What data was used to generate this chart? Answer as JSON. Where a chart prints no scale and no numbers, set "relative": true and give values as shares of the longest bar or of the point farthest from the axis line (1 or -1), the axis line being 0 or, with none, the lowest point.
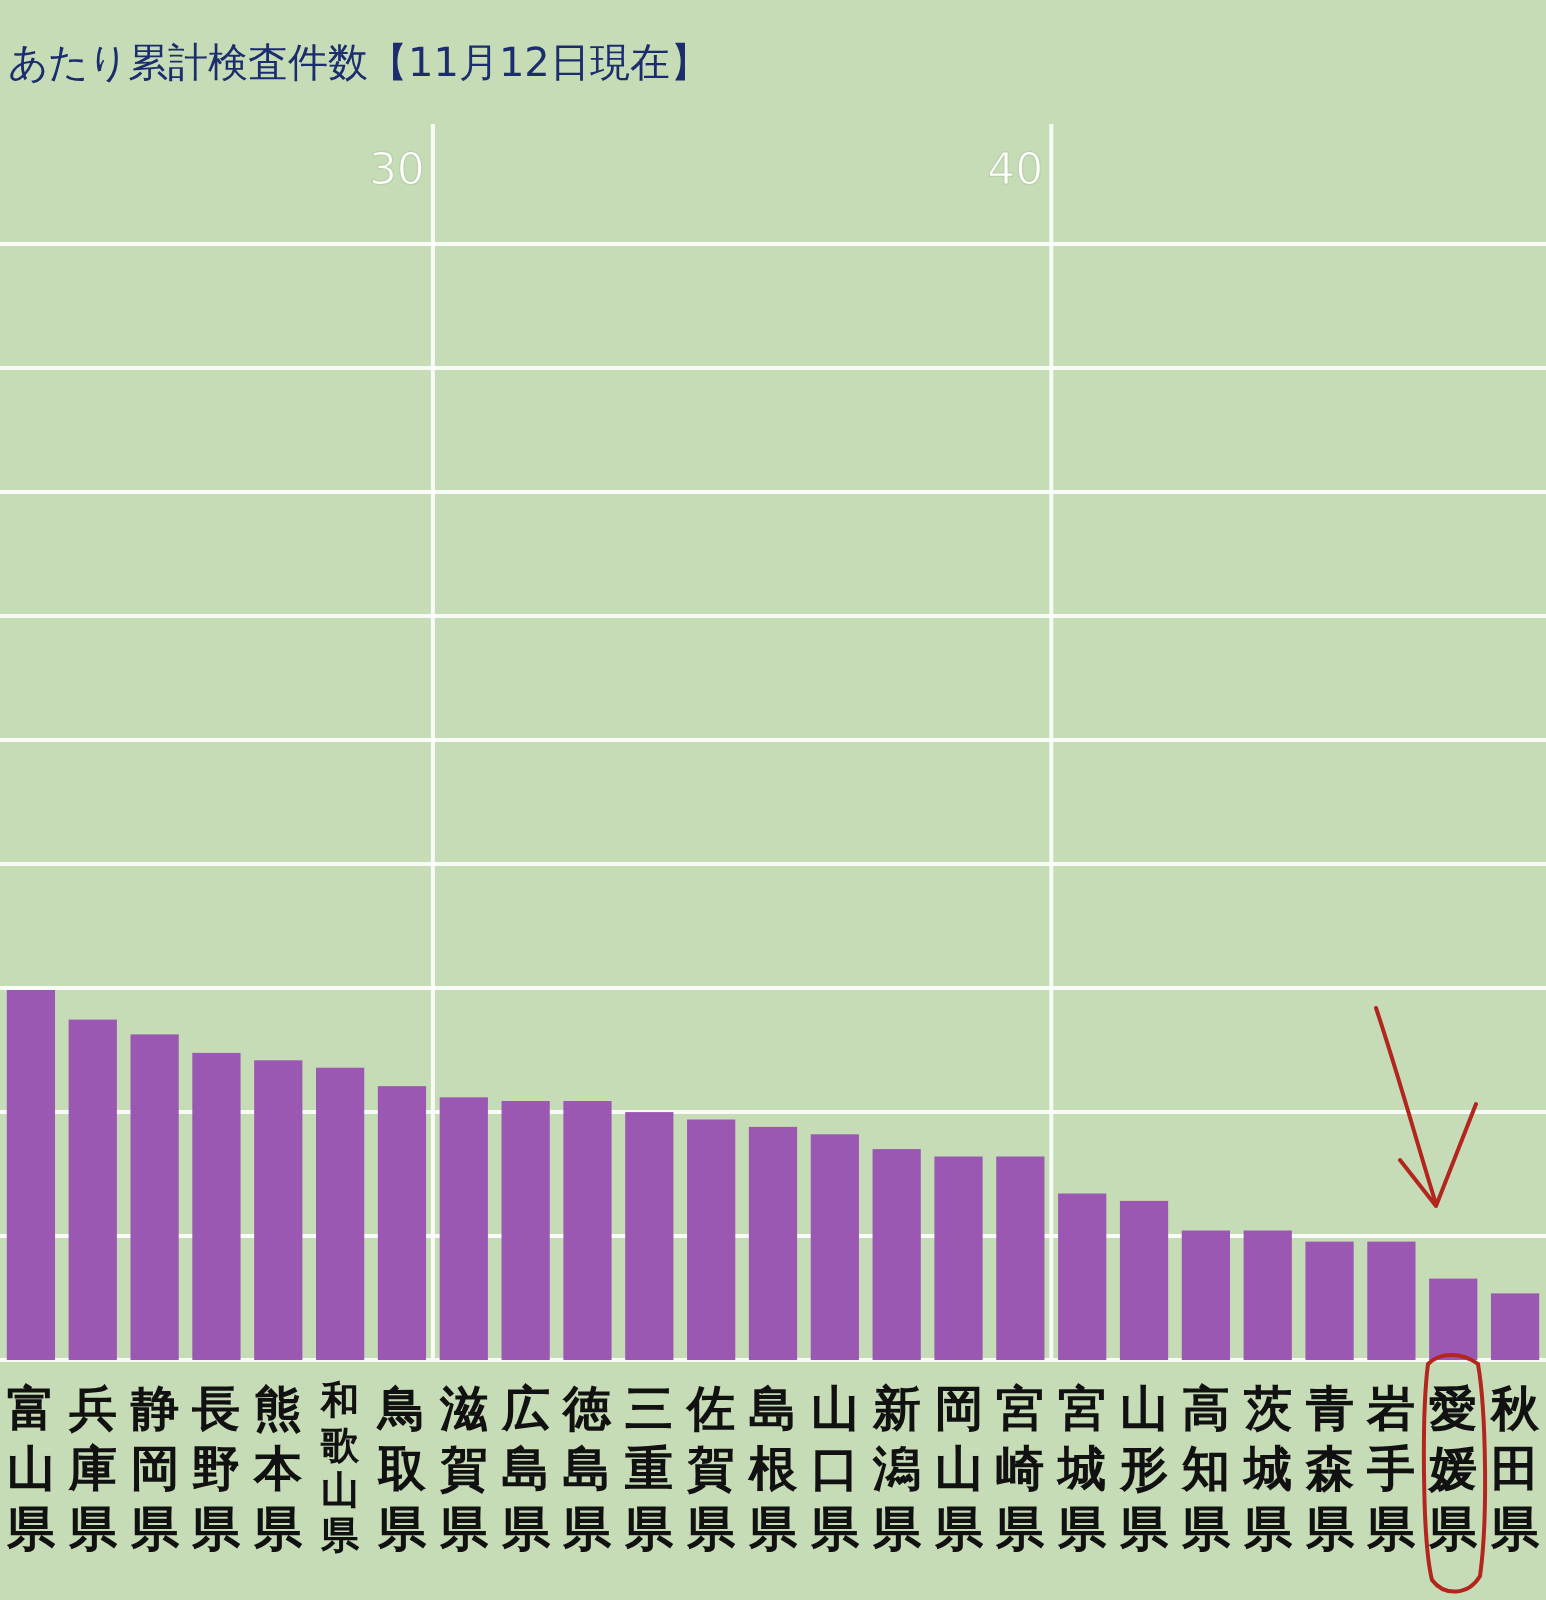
{
  "chart_data": {
    "type": "bar",
    "title": "あたり累計検査件数【11月12日現在】",
    "categories": [
      "富山県",
      "兵庫県",
      "静岡県",
      "長野県",
      "熊本県",
      "和歌山県",
      "鳥取県",
      "滋賀県",
      "広島県",
      "徳島県",
      "三重県",
      "佐賀県",
      "島根県",
      "山口県",
      "新潟県",
      "岡山県",
      "宮崎県",
      "宮城県",
      "山形県",
      "高知県",
      "茨城県",
      "青森県",
      "岩手県",
      "愛媛県",
      "秋田県"
    ],
    "values": [
      1,
      0.92,
      0.88,
      0.83,
      0.81,
      0.79,
      0.74,
      0.71,
      0.7,
      0.7,
      0.67,
      0.65,
      0.63,
      0.61,
      0.57,
      0.55,
      0.55,
      0.45,
      0.43,
      0.35,
      0.35,
      0.32,
      0.32,
      0.22,
      0.18
    ],
    "color": "#9b58b2",
    "relative": true,
    "grid": true,
    "annotations": [
      "30",
      "40"
    ]
  }
}
